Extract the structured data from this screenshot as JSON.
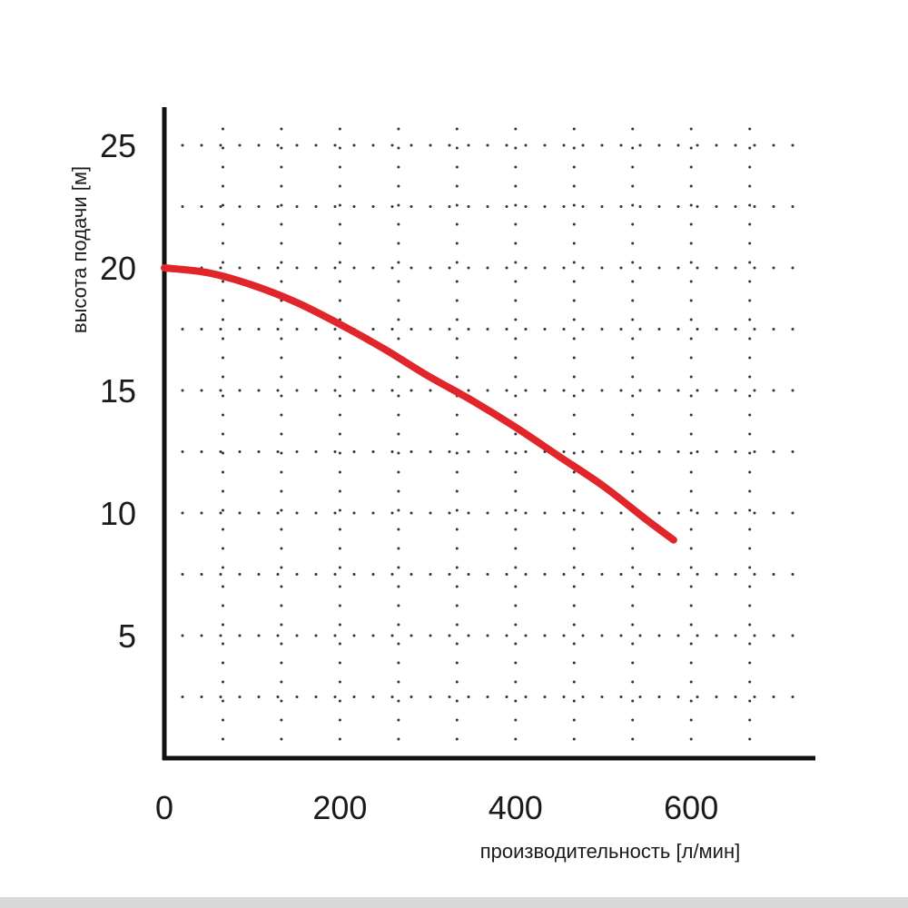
{
  "chart_data": {
    "type": "line",
    "xlabel": "производительность [л/мин]",
    "ylabel": "высота подачи [м]",
    "xlim": [
      0,
      700
    ],
    "ylim": [
      0,
      26
    ],
    "x_ticks": [
      0,
      200,
      400,
      600
    ],
    "y_ticks": [
      5,
      10,
      15,
      20,
      25
    ],
    "grid": true,
    "grid_style": "dotted",
    "x_grid": [
      66.7,
      133.3,
      200,
      266.7,
      333.3,
      400,
      466.7,
      533.3,
      600,
      666.7
    ],
    "y_grid": [
      2.5,
      5,
      7.5,
      10,
      12.5,
      15,
      17.5,
      20,
      22.5,
      25
    ],
    "series": [
      {
        "color": "#e0262b",
        "x": [
          0,
          50,
          100,
          150,
          200,
          250,
          300,
          350,
          400,
          450,
          500,
          550,
          580
        ],
        "y": [
          20.0,
          19.8,
          19.3,
          18.6,
          17.7,
          16.7,
          15.6,
          14.6,
          13.5,
          12.3,
          11.1,
          9.7,
          8.9
        ]
      }
    ]
  }
}
